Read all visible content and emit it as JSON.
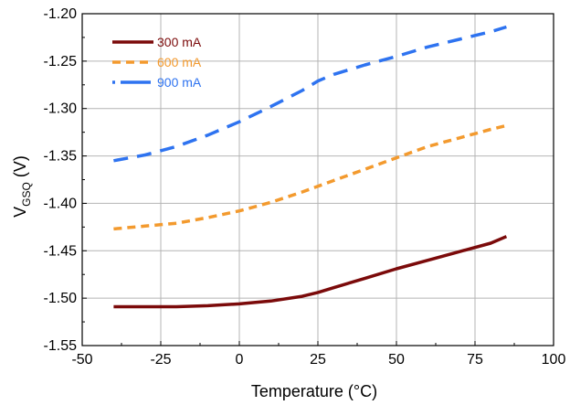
{
  "chart_data": {
    "type": "line",
    "xlabel": "Temperature (°C)",
    "ylabel_main": "V",
    "ylabel_sub": "GSQ",
    "ylabel_unit": " (V)",
    "xlim": [
      -50,
      100
    ],
    "ylim": [
      -1.55,
      -1.2
    ],
    "xticks": [
      -50,
      -25,
      0,
      25,
      50,
      75,
      100
    ],
    "xtick_labels": [
      "-50",
      "-25",
      "0",
      "25",
      "50",
      "75",
      "100"
    ],
    "yticks": [
      -1.55,
      -1.5,
      -1.45,
      -1.4,
      -1.35,
      -1.3,
      -1.25,
      -1.2
    ],
    "ytick_labels": [
      "-1.55",
      "-1.50",
      "-1.45",
      "-1.40",
      "-1.35",
      "-1.30",
      "-1.25",
      "-1.20"
    ],
    "grid": true,
    "legend_position": "top-left",
    "series": [
      {
        "name": "300 mA",
        "color": "#7b0a0a",
        "dash": "solid",
        "x": [
          -40,
          -30,
          -20,
          -10,
          0,
          10,
          20,
          25,
          30,
          40,
          50,
          60,
          70,
          80,
          85
        ],
        "y": [
          -1.509,
          -1.509,
          -1.509,
          -1.508,
          -1.506,
          -1.503,
          -1.498,
          -1.494,
          -1.489,
          -1.479,
          -1.469,
          -1.46,
          -1.451,
          -1.442,
          -1.435
        ]
      },
      {
        "name": "600 mA",
        "color": "#f39a2e",
        "dash": "dashed",
        "x": [
          -40,
          -30,
          -20,
          -10,
          0,
          10,
          20,
          30,
          40,
          50,
          60,
          70,
          80,
          85
        ],
        "y": [
          -1.427,
          -1.424,
          -1.421,
          -1.415,
          -1.408,
          -1.399,
          -1.388,
          -1.376,
          -1.364,
          -1.352,
          -1.34,
          -1.331,
          -1.322,
          -1.318
        ]
      },
      {
        "name": "900 mA",
        "color": "#2e73f0",
        "dash": "longdash",
        "x": [
          -40,
          -30,
          -20,
          -10,
          0,
          10,
          20,
          25,
          30,
          40,
          50,
          60,
          70,
          80,
          85
        ],
        "y": [
          -1.355,
          -1.349,
          -1.34,
          -1.328,
          -1.314,
          -1.298,
          -1.281,
          -1.271,
          -1.264,
          -1.254,
          -1.245,
          -1.235,
          -1.227,
          -1.219,
          -1.214
        ]
      }
    ]
  }
}
